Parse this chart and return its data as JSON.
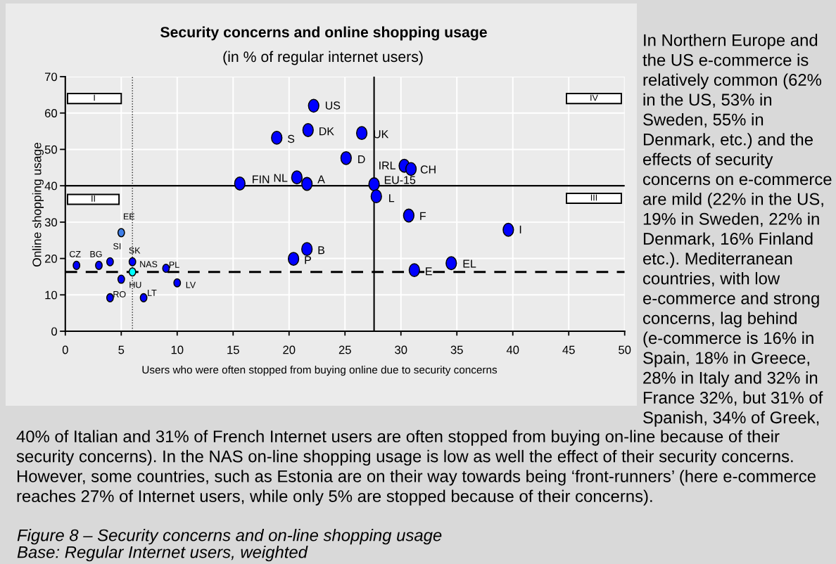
{
  "chart_data": {
    "type": "scatter",
    "title": "Security concerns and online shopping usage",
    "subtitle": "(in % of regular internet users)",
    "xlabel": "Users who were often stopped from buying online due to security concerns",
    "ylabel": "Online shopping usage",
    "series": [
      {
        "color": "#0000ff",
        "x": [
          22.2,
          21.7,
          18.9,
          26.5,
          25.1,
          30.3,
          30.9,
          20.7,
          15.6,
          21.6,
          27.6,
          27.8,
          30.7,
          39.6,
          21.6,
          20.4,
          34.5,
          31.2
        ],
        "values": [
          62,
          55.3,
          53.2,
          54.5,
          47.6,
          45.5,
          44.6,
          42.3,
          40.6,
          40.5,
          40.4,
          37.1,
          31.8,
          27.9,
          22.6,
          19.9,
          18.7,
          16.8
        ]
      },
      {
        "colors": [
          "#3f7fe8",
          "#0000ff",
          "#0000ff",
          "#0000ff",
          "#0000ff",
          "#00ffff",
          "#0000ff",
          "#0000ff",
          "#0000ff",
          "#0000ff",
          "#0000ff"
        ],
        "x": [
          5,
          1,
          3,
          4,
          6,
          6,
          9,
          5,
          10,
          4,
          7
        ],
        "values": [
          27.1,
          18.1,
          18.1,
          19.1,
          19.1,
          16.3,
          17.3,
          14.3,
          13.3,
          9.2,
          9.2
        ]
      }
    ],
    "xlim": [
      0,
      50
    ],
    "ylim": [
      0,
      70
    ],
    "xticks": [
      0,
      5,
      10,
      15,
      20,
      25,
      30,
      35,
      40,
      45,
      50
    ],
    "yticks": [
      0,
      10,
      20,
      30,
      40,
      50,
      60,
      70
    ],
    "grid": true,
    "marker": "circle",
    "ref_lines": [
      {
        "axis": "x",
        "value": 27.6,
        "color": "#000000",
        "line_style": "solid"
      },
      {
        "axis": "y",
        "value": 40,
        "color": "#000000",
        "line_style": "solid"
      },
      {
        "axis": "y",
        "value": 16.3,
        "color": "#000000",
        "line_style": "dashed"
      },
      {
        "axis": "x",
        "value": 6,
        "color": "#000000",
        "line_style": "dotted"
      }
    ],
    "annotations": [
      {
        "text": "US",
        "x": 22.2,
        "y": 62
      },
      {
        "text": "DK",
        "x": 21.7,
        "y": 55.3
      },
      {
        "text": "S",
        "x": 18.9,
        "y": 53.2
      },
      {
        "text": "UK",
        "x": 26.5,
        "y": 54.5
      },
      {
        "text": "D",
        "x": 25.1,
        "y": 47.6
      },
      {
        "text": "IRL",
        "x": 30.3,
        "y": 45.5
      },
      {
        "text": "CH",
        "x": 30.9,
        "y": 44.6
      },
      {
        "text": "NL",
        "x": 20.7,
        "y": 42.3
      },
      {
        "text": "FIN",
        "x": 15.6,
        "y": 40.6
      },
      {
        "text": "A",
        "x": 21.6,
        "y": 40.5
      },
      {
        "text": "EU-15",
        "x": 27.6,
        "y": 40.4
      },
      {
        "text": "L",
        "x": 27.8,
        "y": 37.1
      },
      {
        "text": "F",
        "x": 30.7,
        "y": 31.8
      },
      {
        "text": "I",
        "x": 39.6,
        "y": 27.9
      },
      {
        "text": "B",
        "x": 21.6,
        "y": 22.6
      },
      {
        "text": "P",
        "x": 20.4,
        "y": 19.9
      },
      {
        "text": "EL",
        "x": 34.5,
        "y": 18.7
      },
      {
        "text": "E",
        "x": 31.2,
        "y": 16.8
      },
      {
        "text": "EE",
        "x": 5,
        "y": 27.1
      },
      {
        "text": "CZ",
        "x": 1,
        "y": 18.1
      },
      {
        "text": "BG",
        "x": 3,
        "y": 18.1
      },
      {
        "text": "SI",
        "x": 4,
        "y": 19.1
      },
      {
        "text": "SK",
        "x": 6,
        "y": 19.1
      },
      {
        "text": "NAS",
        "x": 6,
        "y": 16.3
      },
      {
        "text": "PL",
        "x": 9,
        "y": 17.3
      },
      {
        "text": "HU",
        "x": 5,
        "y": 14.3
      },
      {
        "text": "LV",
        "x": 10,
        "y": 13.3
      },
      {
        "text": "RO",
        "x": 4,
        "y": 9.2
      },
      {
        "text": "LT",
        "x": 7,
        "y": 9.2
      },
      "I",
      "II",
      "III",
      "IV",
      "In Northern Europe and the US e-commerce is relatively common (62% in the US, 53% in Sweden, 55% in Denmark, etc.) and the effects of security concerns on e-commerce are mild (22% in the US, 19% in Sweden, 22% in Denmark, 16% Finland etc.). Mediterranean countries, with low e-commerce and strong concerns, lag behind (e-commerce is 16% in Spain, 18% in Greece, 28% in Italy and 32% in France 32%, but 31% of Spanish, 34% of Greek,",
      "40% of Italian and 31% of French Internet users are often stopped from buying on-line because of their security concerns). In the NAS on-line shopping usage is low as well the effect of their security concerns. However, some countries, such as Estonia are on their way towards being ‘front-runners’ (here e-commerce reaches 27% of Internet users, while only 5% are stopped because of their concerns).",
      "Figure 8 – Security concerns and on-line shopping usage",
      "Base: Regular Internet users, weighted"
    ]
  }
}
